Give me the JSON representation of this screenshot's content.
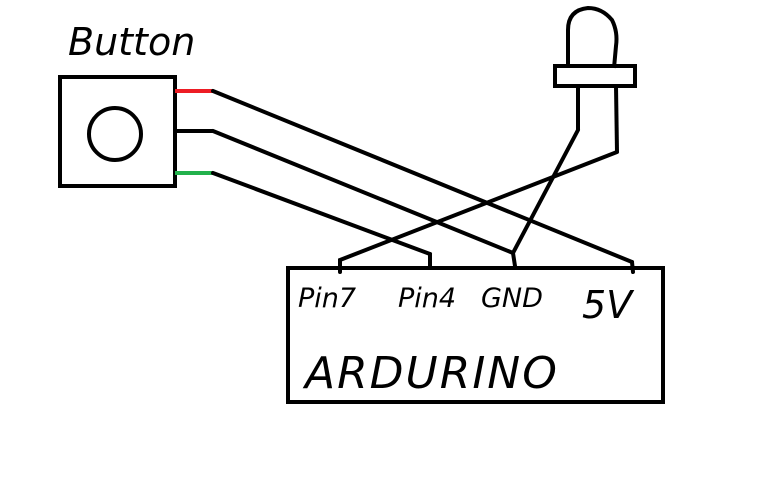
{
  "button": {
    "title": "Button"
  },
  "arduino": {
    "label": "ARDURINO",
    "pins": [
      "Pin7",
      "Pin4",
      "GND",
      "5V"
    ]
  },
  "colors": {
    "ink": "#000000",
    "wire_red": "#ed1c24",
    "wire_green": "#22b14c",
    "background": "#ffffff"
  },
  "icons": {
    "led": "led-icon",
    "push_button": "push-button-icon"
  }
}
